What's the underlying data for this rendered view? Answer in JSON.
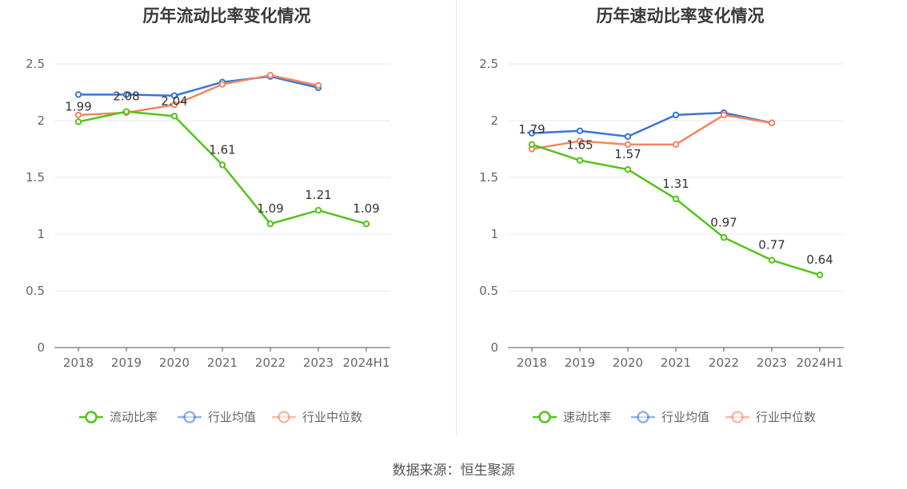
{
  "source_label": "数据来源：恒生聚源",
  "chart_data": [
    {
      "type": "line",
      "title": "历年流动比率变化情况",
      "categories": [
        "2018",
        "2019",
        "2020",
        "2021",
        "2022",
        "2023",
        "2024H1"
      ],
      "ylim": [
        0,
        2.5
      ],
      "yticks": [
        0,
        0.5,
        1,
        1.5,
        2,
        2.5
      ],
      "ytick_labels": [
        "0",
        "0.5",
        "1",
        "1.5",
        "2",
        "2.5"
      ],
      "grid": true,
      "legend": "bottom",
      "series": [
        {
          "name": "流动比率",
          "color": "#52c41a",
          "values": [
            1.99,
            2.08,
            2.04,
            1.61,
            1.09,
            1.21,
            1.09
          ],
          "labels": [
            "1.99",
            "2.08",
            "2.04",
            "1.61",
            "1.09",
            "1.21",
            "1.09"
          ]
        },
        {
          "name": "行业均值",
          "color": "#3b74d8",
          "values": [
            2.23,
            2.23,
            2.22,
            2.34,
            2.39,
            2.29,
            null
          ]
        },
        {
          "name": "行业中位数",
          "color": "#f08760",
          "values": [
            2.05,
            2.07,
            2.14,
            2.32,
            2.4,
            2.31,
            null
          ]
        }
      ]
    },
    {
      "type": "line",
      "title": "历年速动比率变化情况",
      "categories": [
        "2018",
        "2019",
        "2020",
        "2021",
        "2022",
        "2023",
        "2024H1"
      ],
      "ylim": [
        0,
        2.5
      ],
      "yticks": [
        0,
        0.5,
        1,
        1.5,
        2,
        2.5
      ],
      "ytick_labels": [
        "0",
        "0.5",
        "1",
        "1.5",
        "2",
        "2.5"
      ],
      "grid": true,
      "legend": "bottom",
      "series": [
        {
          "name": "速动比率",
          "color": "#52c41a",
          "values": [
            1.79,
            1.65,
            1.57,
            1.31,
            0.97,
            0.77,
            0.64
          ],
          "labels": [
            "1.79",
            "1.65",
            "1.57",
            "1.31",
            "0.97",
            "0.77",
            "0.64"
          ]
        },
        {
          "name": "行业均值",
          "color": "#3b74d8",
          "values": [
            1.89,
            1.91,
            1.86,
            2.05,
            2.07,
            1.98,
            null
          ]
        },
        {
          "name": "行业中位数",
          "color": "#f08760",
          "values": [
            1.75,
            1.82,
            1.79,
            1.79,
            2.05,
            1.98,
            null
          ]
        }
      ]
    }
  ]
}
